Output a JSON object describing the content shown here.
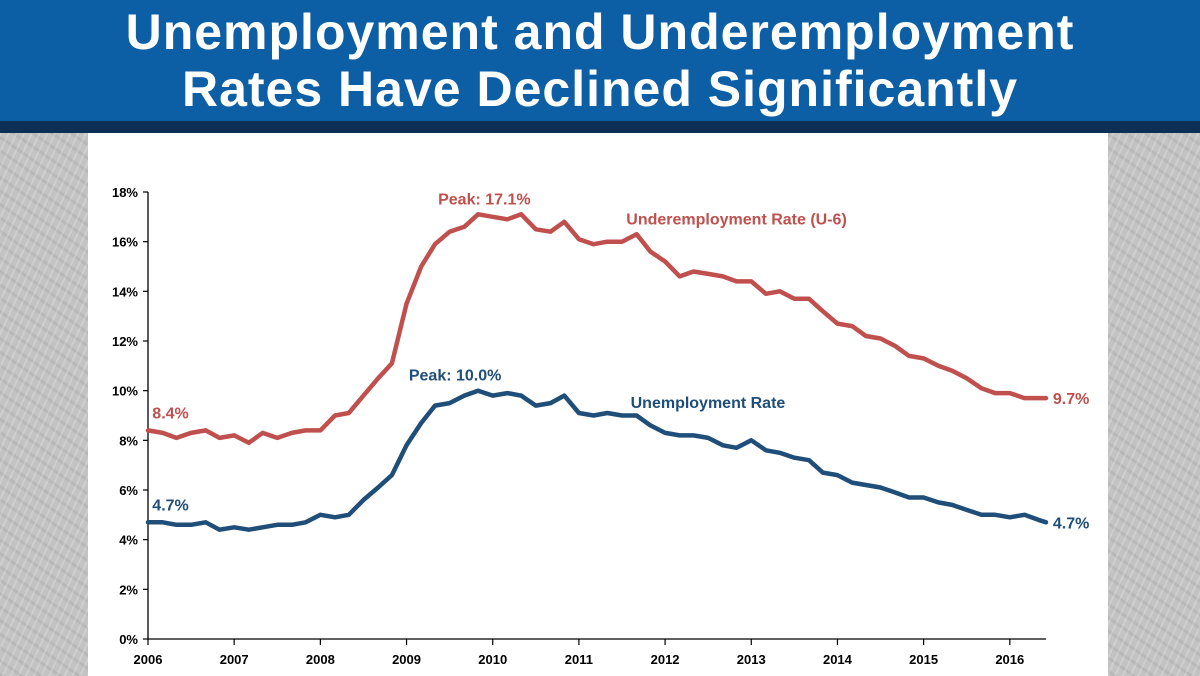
{
  "header": {
    "title_line1": "Unemployment and Underemployment",
    "title_line2": "Rates Have Declined Significantly",
    "background_color": "#0c5ea5",
    "stripe_color": "#0e2f55"
  },
  "chart_data": {
    "type": "line",
    "x_ticks": [
      "2006",
      "2007",
      "2008",
      "2009",
      "2010",
      "2011",
      "2012",
      "2013",
      "2014",
      "2015",
      "2016"
    ],
    "y_ticks": [
      "0%",
      "2%",
      "4%",
      "6%",
      "8%",
      "10%",
      "12%",
      "14%",
      "16%",
      "18%"
    ],
    "ylim": [
      0,
      18
    ],
    "xlim": [
      2006,
      2016.42
    ],
    "grid": false,
    "series": [
      {
        "name": "Underemployment Rate (U-6)",
        "color": "#c0504d",
        "points": [
          [
            2006.0,
            8.4
          ],
          [
            2006.17,
            8.3
          ],
          [
            2006.33,
            8.1
          ],
          [
            2006.5,
            8.3
          ],
          [
            2006.67,
            8.4
          ],
          [
            2006.83,
            8.1
          ],
          [
            2007.0,
            8.2
          ],
          [
            2007.17,
            7.9
          ],
          [
            2007.33,
            8.3
          ],
          [
            2007.5,
            8.1
          ],
          [
            2007.67,
            8.3
          ],
          [
            2007.83,
            8.4
          ],
          [
            2008.0,
            8.4
          ],
          [
            2008.17,
            9.0
          ],
          [
            2008.33,
            9.1
          ],
          [
            2008.5,
            9.8
          ],
          [
            2008.67,
            10.5
          ],
          [
            2008.83,
            11.1
          ],
          [
            2009.0,
            13.5
          ],
          [
            2009.17,
            15.0
          ],
          [
            2009.33,
            15.9
          ],
          [
            2009.5,
            16.4
          ],
          [
            2009.67,
            16.6
          ],
          [
            2009.83,
            17.1
          ],
          [
            2010.0,
            17.0
          ],
          [
            2010.17,
            16.9
          ],
          [
            2010.33,
            17.1
          ],
          [
            2010.5,
            16.5
          ],
          [
            2010.67,
            16.4
          ],
          [
            2010.83,
            16.8
          ],
          [
            2011.0,
            16.1
          ],
          [
            2011.17,
            15.9
          ],
          [
            2011.33,
            16.0
          ],
          [
            2011.5,
            16.0
          ],
          [
            2011.67,
            16.3
          ],
          [
            2011.83,
            15.6
          ],
          [
            2012.0,
            15.2
          ],
          [
            2012.17,
            14.6
          ],
          [
            2012.33,
            14.8
          ],
          [
            2012.5,
            14.7
          ],
          [
            2012.67,
            14.6
          ],
          [
            2012.83,
            14.4
          ],
          [
            2013.0,
            14.4
          ],
          [
            2013.17,
            13.9
          ],
          [
            2013.33,
            14.0
          ],
          [
            2013.5,
            13.7
          ],
          [
            2013.67,
            13.7
          ],
          [
            2013.83,
            13.2
          ],
          [
            2014.0,
            12.7
          ],
          [
            2014.17,
            12.6
          ],
          [
            2014.33,
            12.2
          ],
          [
            2014.5,
            12.1
          ],
          [
            2014.67,
            11.8
          ],
          [
            2014.83,
            11.4
          ],
          [
            2015.0,
            11.3
          ],
          [
            2015.17,
            11.0
          ],
          [
            2015.33,
            10.8
          ],
          [
            2015.5,
            10.5
          ],
          [
            2015.67,
            10.1
          ],
          [
            2015.83,
            9.9
          ],
          [
            2016.0,
            9.9
          ],
          [
            2016.17,
            9.7
          ],
          [
            2016.33,
            9.7
          ],
          [
            2016.42,
            9.7
          ]
        ]
      },
      {
        "name": "Unemployment Rate",
        "color": "#1f4e79",
        "points": [
          [
            2006.0,
            4.7
          ],
          [
            2006.17,
            4.7
          ],
          [
            2006.33,
            4.6
          ],
          [
            2006.5,
            4.6
          ],
          [
            2006.67,
            4.7
          ],
          [
            2006.83,
            4.4
          ],
          [
            2007.0,
            4.5
          ],
          [
            2007.17,
            4.4
          ],
          [
            2007.33,
            4.5
          ],
          [
            2007.5,
            4.6
          ],
          [
            2007.67,
            4.6
          ],
          [
            2007.83,
            4.7
          ],
          [
            2008.0,
            5.0
          ],
          [
            2008.17,
            4.9
          ],
          [
            2008.33,
            5.0
          ],
          [
            2008.5,
            5.6
          ],
          [
            2008.67,
            6.1
          ],
          [
            2008.83,
            6.6
          ],
          [
            2009.0,
            7.8
          ],
          [
            2009.17,
            8.7
          ],
          [
            2009.33,
            9.4
          ],
          [
            2009.5,
            9.5
          ],
          [
            2009.67,
            9.8
          ],
          [
            2009.83,
            10.0
          ],
          [
            2010.0,
            9.8
          ],
          [
            2010.17,
            9.9
          ],
          [
            2010.33,
            9.8
          ],
          [
            2010.5,
            9.4
          ],
          [
            2010.67,
            9.5
          ],
          [
            2010.83,
            9.8
          ],
          [
            2011.0,
            9.1
          ],
          [
            2011.17,
            9.0
          ],
          [
            2011.33,
            9.1
          ],
          [
            2011.5,
            9.0
          ],
          [
            2011.67,
            9.0
          ],
          [
            2011.83,
            8.6
          ],
          [
            2012.0,
            8.3
          ],
          [
            2012.17,
            8.2
          ],
          [
            2012.33,
            8.2
          ],
          [
            2012.5,
            8.1
          ],
          [
            2012.67,
            7.8
          ],
          [
            2012.83,
            7.7
          ],
          [
            2013.0,
            8.0
          ],
          [
            2013.17,
            7.6
          ],
          [
            2013.33,
            7.5
          ],
          [
            2013.5,
            7.3
          ],
          [
            2013.67,
            7.2
          ],
          [
            2013.83,
            6.7
          ],
          [
            2014.0,
            6.6
          ],
          [
            2014.17,
            6.3
          ],
          [
            2014.33,
            6.2
          ],
          [
            2014.5,
            6.1
          ],
          [
            2014.67,
            5.9
          ],
          [
            2014.83,
            5.7
          ],
          [
            2015.0,
            5.7
          ],
          [
            2015.17,
            5.5
          ],
          [
            2015.33,
            5.4
          ],
          [
            2015.5,
            5.2
          ],
          [
            2015.67,
            5.0
          ],
          [
            2015.83,
            5.0
          ],
          [
            2016.0,
            4.9
          ],
          [
            2016.17,
            5.0
          ],
          [
            2016.33,
            4.8
          ],
          [
            2016.42,
            4.7
          ]
        ]
      }
    ],
    "annotations": [
      {
        "text": "Peak: 17.1%",
        "x": 2009.9,
        "y": 17.1,
        "color": "#c0504d"
      },
      {
        "text": "Underemployment Rate (U-6)",
        "x": 2011.55,
        "y": 16.7,
        "color": "#c0504d"
      },
      {
        "text": "8.4%",
        "x": 2006.05,
        "y": 8.4,
        "color": "#c0504d"
      },
      {
        "text": "9.7%",
        "x": 2016.5,
        "y": 9.7,
        "color": "#c0504d"
      },
      {
        "text": "Peak: 10.0%",
        "x": 2009.7,
        "y": 10.0,
        "color": "#1f4e79"
      },
      {
        "text": "Unemployment Rate",
        "x": 2011.6,
        "y": 9.3,
        "color": "#1f4e79"
      },
      {
        "text": "4.7%",
        "x": 2006.05,
        "y": 4.7,
        "color": "#1f4e79"
      },
      {
        "text": "4.7%",
        "x": 2016.5,
        "y": 4.7,
        "color": "#1f4e79"
      }
    ]
  }
}
